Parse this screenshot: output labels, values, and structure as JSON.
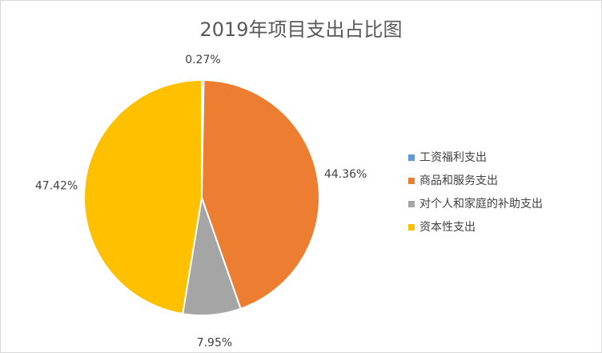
{
  "chart_data": {
    "type": "pie",
    "title": "2019年项目支出占比图",
    "categories": [
      "工资福利支出",
      "商品和服务支出",
      "对个人和家庭的补助支出",
      "资本性支出"
    ],
    "values": [
      0.27,
      44.36,
      7.95,
      47.42
    ],
    "value_labels": [
      "0.27%",
      "44.36%",
      "7.95%",
      "47.42%"
    ],
    "colors": [
      "#5b9bd5",
      "#ed7d31",
      "#a5a5a5",
      "#ffc000"
    ],
    "legend": "right"
  }
}
